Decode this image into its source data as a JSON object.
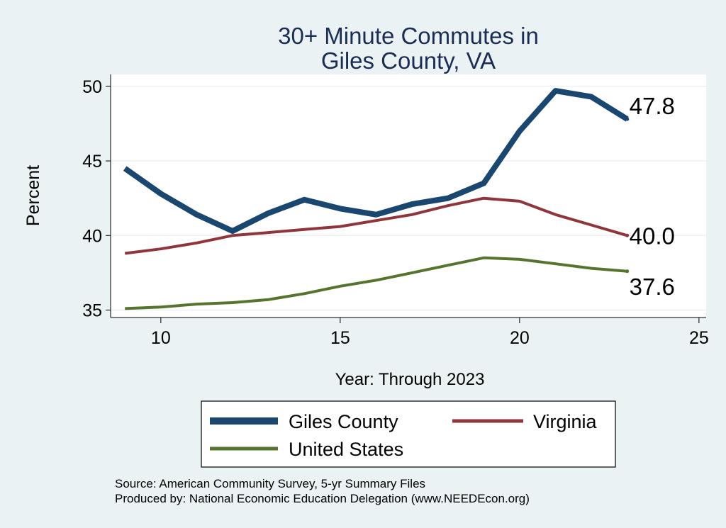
{
  "chart_data": {
    "type": "line",
    "title": [
      "30+ Minute Commutes in",
      "Giles County, VA"
    ],
    "xlabel": "Year: Through 2023",
    "ylabel": "Percent",
    "xlim": [
      8.6,
      25.2
    ],
    "ylim": [
      34.5,
      50.8
    ],
    "xticks": [
      10,
      15,
      20,
      25
    ],
    "yticks": [
      35,
      40,
      45,
      50
    ],
    "grid": true,
    "legend_position": "bottom",
    "series": [
      {
        "name": "Giles County",
        "color": "#1a476f",
        "x": [
          9,
          10,
          11,
          12,
          13,
          14,
          15,
          16,
          17,
          18,
          19,
          20,
          21,
          22,
          23
        ],
        "y": [
          44.5,
          42.8,
          41.4,
          40.3,
          41.5,
          42.4,
          41.8,
          41.4,
          42.1,
          42.5,
          43.5,
          47.0,
          49.7,
          49.3,
          47.8
        ],
        "end_label": "47.8"
      },
      {
        "name": "Virginia",
        "color": "#90353b",
        "x": [
          9,
          10,
          11,
          12,
          13,
          14,
          15,
          16,
          17,
          18,
          19,
          20,
          21,
          22,
          23
        ],
        "y": [
          38.8,
          39.1,
          39.5,
          40.0,
          40.2,
          40.4,
          40.6,
          41.0,
          41.4,
          42.0,
          42.5,
          42.3,
          41.4,
          40.7,
          40.0
        ],
        "end_label": "40.0"
      },
      {
        "name": "United States",
        "color": "#55752f",
        "x": [
          9,
          10,
          11,
          12,
          13,
          14,
          15,
          16,
          17,
          18,
          19,
          20,
          21,
          22,
          23
        ],
        "y": [
          35.1,
          35.2,
          35.4,
          35.5,
          35.7,
          36.1,
          36.6,
          37.0,
          37.5,
          38.0,
          38.5,
          38.4,
          38.1,
          37.8,
          37.6
        ],
        "end_label": "37.6"
      }
    ],
    "source_lines": [
      "Source: American Community Survey, 5-yr Summary Files",
      "Produced by: National Economic Education Delegation (www.NEEDEcon.org)"
    ]
  }
}
